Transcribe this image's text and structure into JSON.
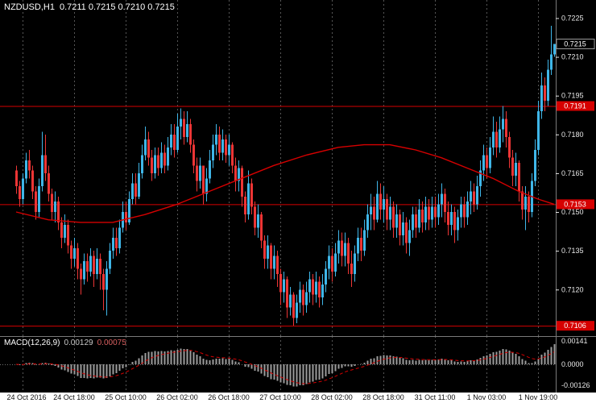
{
  "header": {
    "symbol": "NZDUSD,H1",
    "ohlc": "0.7211 0.7215 0.7210 0.7215"
  },
  "macd_header": {
    "name": "MACD(12,26,9)",
    "macd": "0.00129",
    "signal": "0.00075"
  },
  "colors": {
    "bg": "#000000",
    "up": "#3fb6e8",
    "down": "#ec3535",
    "level_red": "#d60000",
    "ma_red": "#d60000",
    "grid": "#565656",
    "axis_text": "#e8e8e8",
    "hist": "#9c9c9c",
    "signal_line": "#d60000",
    "axis_strip_bg": "#ffffff",
    "axis_strip_text": "#111111",
    "separator": "#7a7a7a"
  },
  "chart_data": [
    {
      "type": "candlestick",
      "title": "NZDUSD,H1",
      "x_labels": [
        "24 Oct 2016",
        "24 Oct 18:00",
        "25 Oct 10:00",
        "26 Oct 02:00",
        "26 Oct 18:00",
        "27 Oct 10:00",
        "28 Oct 02:00",
        "28 Oct 18:00",
        "31 Oct 11:00",
        "1 Nov 03:00",
        "1 Nov 19:00"
      ],
      "y_ticks": [
        0.7225,
        0.721,
        0.7195,
        0.718,
        0.7165,
        0.715,
        0.7135,
        0.712
      ],
      "y_range": [
        0.7102,
        0.7232
      ],
      "levels": [
        {
          "value": 0.7191,
          "label": "0.7191"
        },
        {
          "value": 0.7153,
          "label": "0.7153"
        },
        {
          "value": 0.7106,
          "label": "0.7106"
        }
      ],
      "current_price": {
        "value": 0.7215,
        "label": "0.7215"
      },
      "first_open": 0.7166,
      "bars_hlc": [
        [
          0.7168,
          0.7157,
          0.716
        ],
        [
          0.7162,
          0.7152,
          0.7155
        ],
        [
          0.7165,
          0.7153,
          0.7163
        ],
        [
          0.7173,
          0.7161,
          0.717
        ],
        [
          0.7174,
          0.7163,
          0.7166
        ],
        [
          0.7168,
          0.7155,
          0.7158
        ],
        [
          0.716,
          0.7147,
          0.715
        ],
        [
          0.7163,
          0.7148,
          0.716
        ],
        [
          0.7181,
          0.7158,
          0.7172
        ],
        [
          0.718,
          0.7162,
          0.7165
        ],
        [
          0.7168,
          0.7154,
          0.7157
        ],
        [
          0.7159,
          0.7147,
          0.715
        ],
        [
          0.7158,
          0.7146,
          0.7154
        ],
        [
          0.7156,
          0.7143,
          0.7146
        ],
        [
          0.7148,
          0.7136,
          0.714
        ],
        [
          0.7149,
          0.7138,
          0.7145
        ],
        [
          0.7147,
          0.7134,
          0.7137
        ],
        [
          0.7139,
          0.7128,
          0.7132
        ],
        [
          0.714,
          0.7129,
          0.7136
        ],
        [
          0.7138,
          0.7124,
          0.7128
        ],
        [
          0.713,
          0.7118,
          0.7124
        ],
        [
          0.7134,
          0.7122,
          0.7131
        ],
        [
          0.7134,
          0.7123,
          0.7127
        ],
        [
          0.7136,
          0.7125,
          0.7133
        ],
        [
          0.7135,
          0.7121,
          0.7126
        ],
        [
          0.7136,
          0.7124,
          0.7132
        ],
        [
          0.7134,
          0.712,
          0.7126
        ],
        [
          0.7128,
          0.7112,
          0.712
        ],
        [
          0.7131,
          0.711,
          0.7128
        ],
        [
          0.7138,
          0.7126,
          0.7135
        ],
        [
          0.7144,
          0.7132,
          0.714
        ],
        [
          0.7144,
          0.7133,
          0.7136
        ],
        [
          0.7147,
          0.7134,
          0.7144
        ],
        [
          0.7154,
          0.7142,
          0.715
        ],
        [
          0.7154,
          0.7143,
          0.7146
        ],
        [
          0.7158,
          0.7145,
          0.7155
        ],
        [
          0.7165,
          0.7153,
          0.7161
        ],
        [
          0.7165,
          0.7153,
          0.7156
        ],
        [
          0.7169,
          0.7155,
          0.7165
        ],
        [
          0.7176,
          0.7163,
          0.7172
        ],
        [
          0.7183,
          0.717,
          0.7178
        ],
        [
          0.7181,
          0.7168,
          0.7171
        ],
        [
          0.7174,
          0.7162,
          0.7165
        ],
        [
          0.7175,
          0.7163,
          0.7172
        ],
        [
          0.7175,
          0.7164,
          0.7167
        ],
        [
          0.7177,
          0.7165,
          0.7173
        ],
        [
          0.7176,
          0.7165,
          0.7168
        ],
        [
          0.7179,
          0.7166,
          0.7175
        ],
        [
          0.7184,
          0.7172,
          0.718
        ],
        [
          0.7184,
          0.7171,
          0.7174
        ],
        [
          0.7188,
          0.7173,
          0.7183
        ],
        [
          0.719,
          0.7178,
          0.7186
        ],
        [
          0.7189,
          0.7176,
          0.7179
        ],
        [
          0.7189,
          0.7177,
          0.7184
        ],
        [
          0.7186,
          0.7173,
          0.7176
        ],
        [
          0.7178,
          0.7165,
          0.7168
        ],
        [
          0.7171,
          0.7158,
          0.7162
        ],
        [
          0.7171,
          0.7159,
          0.7168
        ],
        [
          0.7168,
          0.7153,
          0.7157
        ],
        [
          0.7167,
          0.7154,
          0.7163
        ],
        [
          0.7174,
          0.7161,
          0.717
        ],
        [
          0.718,
          0.7167,
          0.7176
        ],
        [
          0.7184,
          0.7172,
          0.718
        ],
        [
          0.7183,
          0.717,
          0.7173
        ],
        [
          0.7182,
          0.717,
          0.7178
        ],
        [
          0.718,
          0.7169,
          0.7172
        ],
        [
          0.718,
          0.7168,
          0.7176
        ],
        [
          0.7177,
          0.7165,
          0.7168
        ],
        [
          0.7171,
          0.7158,
          0.7162
        ],
        [
          0.717,
          0.7158,
          0.7167
        ],
        [
          0.7168,
          0.7152,
          0.7156
        ],
        [
          0.7158,
          0.7146,
          0.7149
        ],
        [
          0.7166,
          0.7147,
          0.7161
        ],
        [
          0.7163,
          0.7149,
          0.7152
        ],
        [
          0.7154,
          0.7141,
          0.7144
        ],
        [
          0.7153,
          0.714,
          0.7149
        ],
        [
          0.715,
          0.7136,
          0.7139
        ],
        [
          0.7141,
          0.7128,
          0.7132
        ],
        [
          0.7141,
          0.7128,
          0.7137
        ],
        [
          0.7138,
          0.7124,
          0.7128
        ],
        [
          0.7137,
          0.7124,
          0.7133
        ],
        [
          0.7135,
          0.7121,
          0.7126
        ],
        [
          0.7128,
          0.7114,
          0.7119
        ],
        [
          0.7127,
          0.7115,
          0.7124
        ],
        [
          0.7125,
          0.7109,
          0.7113
        ],
        [
          0.7121,
          0.711,
          0.7118
        ],
        [
          0.7119,
          0.7106,
          0.7109
        ],
        [
          0.7118,
          0.7107,
          0.7115
        ],
        [
          0.7123,
          0.7111,
          0.712
        ],
        [
          0.7122,
          0.711,
          0.7114
        ],
        [
          0.7123,
          0.7111,
          0.7119
        ],
        [
          0.7127,
          0.7115,
          0.7124
        ],
        [
          0.7126,
          0.7114,
          0.7118
        ],
        [
          0.7127,
          0.7115,
          0.7123
        ],
        [
          0.7125,
          0.7113,
          0.7117
        ],
        [
          0.7126,
          0.7114,
          0.7122
        ],
        [
          0.7131,
          0.7119,
          0.7128
        ],
        [
          0.7137,
          0.7124,
          0.7133
        ],
        [
          0.7136,
          0.7123,
          0.7127
        ],
        [
          0.7138,
          0.7125,
          0.7134
        ],
        [
          0.7143,
          0.713,
          0.7139
        ],
        [
          0.7142,
          0.7129,
          0.7133
        ],
        [
          0.7142,
          0.7129,
          0.7138
        ],
        [
          0.714,
          0.7126,
          0.713
        ],
        [
          0.7135,
          0.7121,
          0.7126
        ],
        [
          0.7137,
          0.7123,
          0.7134
        ],
        [
          0.7144,
          0.7131,
          0.714
        ],
        [
          0.7144,
          0.7131,
          0.7135
        ],
        [
          0.7147,
          0.7133,
          0.7143
        ],
        [
          0.7153,
          0.714,
          0.7149
        ],
        [
          0.7157,
          0.7143,
          0.7152
        ],
        [
          0.7156,
          0.7143,
          0.7147
        ],
        [
          0.7162,
          0.7146,
          0.7157
        ],
        [
          0.7161,
          0.7147,
          0.7151
        ],
        [
          0.716,
          0.7146,
          0.7155
        ],
        [
          0.7157,
          0.7143,
          0.7147
        ],
        [
          0.7156,
          0.7143,
          0.7152
        ],
        [
          0.7154,
          0.714,
          0.7144
        ],
        [
          0.7153,
          0.714,
          0.7149
        ],
        [
          0.7151,
          0.7137,
          0.7141
        ],
        [
          0.715,
          0.7137,
          0.7146
        ],
        [
          0.7148,
          0.7134,
          0.7138
        ],
        [
          0.7147,
          0.7133,
          0.7143
        ],
        [
          0.7152,
          0.714,
          0.7149
        ],
        [
          0.7152,
          0.714,
          0.7144
        ],
        [
          0.7155,
          0.7142,
          0.7151
        ],
        [
          0.7154,
          0.7142,
          0.7146
        ],
        [
          0.7156,
          0.7143,
          0.7152
        ],
        [
          0.7155,
          0.7143,
          0.7147
        ],
        [
          0.7156,
          0.7144,
          0.7152
        ],
        [
          0.7156,
          0.7144,
          0.7148
        ],
        [
          0.7157,
          0.7145,
          0.7153
        ],
        [
          0.7161,
          0.7148,
          0.7157
        ],
        [
          0.7159,
          0.7146,
          0.715
        ],
        [
          0.7154,
          0.7141,
          0.7145
        ],
        [
          0.7153,
          0.7141,
          0.715
        ],
        [
          0.7152,
          0.7138,
          0.7143
        ],
        [
          0.7151,
          0.7139,
          0.7148
        ],
        [
          0.7156,
          0.7144,
          0.7153
        ],
        [
          0.7156,
          0.7144,
          0.7148
        ],
        [
          0.7158,
          0.7145,
          0.7154
        ],
        [
          0.7162,
          0.7149,
          0.7158
        ],
        [
          0.7161,
          0.715,
          0.7153
        ],
        [
          0.7164,
          0.7151,
          0.716
        ],
        [
          0.717,
          0.7156,
          0.7166
        ],
        [
          0.7176,
          0.7162,
          0.7172
        ],
        [
          0.7175,
          0.7163,
          0.7167
        ],
        [
          0.7179,
          0.7165,
          0.7175
        ],
        [
          0.7187,
          0.7172,
          0.7181
        ],
        [
          0.7185,
          0.7171,
          0.7175
        ],
        [
          0.7187,
          0.7173,
          0.7182
        ],
        [
          0.7191,
          0.7177,
          0.7186
        ],
        [
          0.7189,
          0.7175,
          0.7179
        ],
        [
          0.7181,
          0.7167,
          0.7171
        ],
        [
          0.7174,
          0.716,
          0.7164
        ],
        [
          0.7173,
          0.716,
          0.7169
        ],
        [
          0.717,
          0.7154,
          0.7158
        ],
        [
          0.716,
          0.7147,
          0.7151
        ],
        [
          0.716,
          0.7143,
          0.7156
        ],
        [
          0.7158,
          0.7146,
          0.715
        ],
        [
          0.7165,
          0.7148,
          0.7162
        ],
        [
          0.7178,
          0.716,
          0.7174
        ],
        [
          0.7193,
          0.7172,
          0.7189
        ],
        [
          0.7204,
          0.7186,
          0.7199
        ],
        [
          0.7202,
          0.7189,
          0.7193
        ],
        [
          0.7209,
          0.7191,
          0.7205
        ],
        [
          0.7222,
          0.7203,
          0.7211
        ],
        [
          0.7215,
          0.721,
          0.7215
        ]
      ],
      "ma_points": [
        [
          0,
          0.715
        ],
        [
          10,
          0.7147
        ],
        [
          20,
          0.7146
        ],
        [
          30,
          0.7146
        ],
        [
          40,
          0.7149
        ],
        [
          50,
          0.7153
        ],
        [
          60,
          0.7158
        ],
        [
          70,
          0.7163
        ],
        [
          80,
          0.7168
        ],
        [
          90,
          0.7172
        ],
        [
          100,
          0.7175
        ],
        [
          108,
          0.7176
        ],
        [
          116,
          0.7176
        ],
        [
          124,
          0.7174
        ],
        [
          132,
          0.7171
        ],
        [
          140,
          0.7167
        ],
        [
          148,
          0.7163
        ],
        [
          156,
          0.7158
        ],
        [
          162,
          0.7155
        ],
        [
          167,
          0.7153
        ]
      ]
    },
    {
      "type": "bar",
      "name": "MACD",
      "params": [
        12,
        26,
        9
      ],
      "value": 0.00129,
      "signal": 0.00075,
      "y_ticks": [
        {
          "value": 0.00141,
          "label": "0.00141"
        },
        {
          "value": 0,
          "label": "0.0000"
        },
        {
          "value": -0.00126,
          "label": "-0.00126"
        }
      ],
      "y_range": [
        -0.00155,
        0.00155
      ]
    }
  ]
}
